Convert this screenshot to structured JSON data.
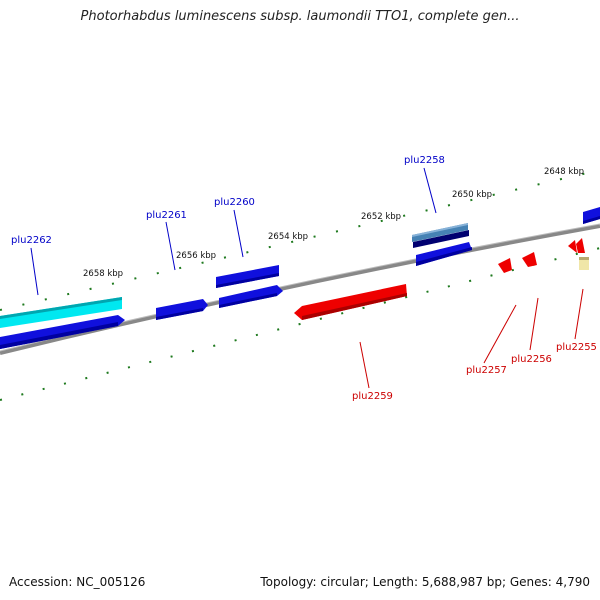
{
  "header": {
    "title": "Photorhabdus luminescens subsp. laumondii TTO1, complete gen..."
  },
  "footer": {
    "accession": "Accession: NC_005126",
    "summary": "Topology: circular; Length: 5,688,987 bp; Genes: 4,790"
  },
  "colors": {
    "forward_label": "#0000c8",
    "reverse_label": "#cc0000",
    "tick": "#1f7a1f",
    "backbone": "#888888"
  },
  "scale_ticks": [
    {
      "label": "2648 kbp"
    },
    {
      "label": "2650 kbp"
    },
    {
      "label": "2652 kbp"
    },
    {
      "label": "2654 kbp"
    },
    {
      "label": "2656 kbp"
    },
    {
      "label": "2658 kbp"
    }
  ],
  "genes": [
    {
      "name": "plu2262",
      "strand": "forward"
    },
    {
      "name": "plu2261",
      "strand": "forward"
    },
    {
      "name": "plu2260",
      "strand": "forward"
    },
    {
      "name": "plu2258",
      "strand": "forward"
    },
    {
      "name": "plu2259",
      "strand": "reverse"
    },
    {
      "name": "plu2257",
      "strand": "reverse"
    },
    {
      "name": "plu2256",
      "strand": "reverse"
    },
    {
      "name": "plu2255",
      "strand": "reverse"
    }
  ]
}
